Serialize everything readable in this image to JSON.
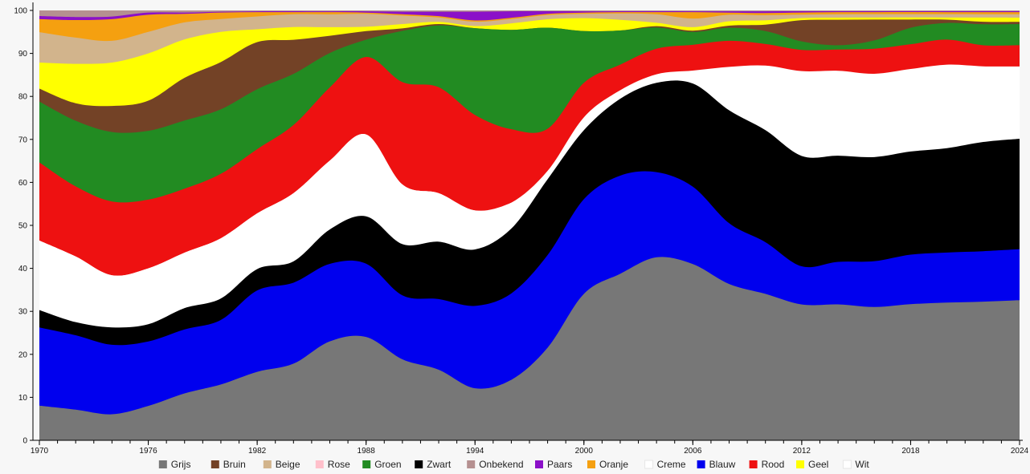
{
  "chart_data": {
    "type": "area",
    "stacked": true,
    "streamgraph_smoothing": true,
    "title": "",
    "xlabel": "",
    "ylabel": "",
    "xlim": [
      1970,
      2024
    ],
    "ylim": [
      0,
      100
    ],
    "x_ticks": [
      1970,
      1976,
      1982,
      1988,
      1994,
      2000,
      2006,
      2012,
      2018,
      2024
    ],
    "y_ticks": [
      0,
      10,
      20,
      30,
      40,
      50,
      60,
      70,
      80,
      90,
      100
    ],
    "grid": false,
    "legend_position": "bottom",
    "x": [
      1970,
      1972,
      1974,
      1976,
      1978,
      1980,
      1982,
      1984,
      1986,
      1988,
      1990,
      1992,
      1994,
      1996,
      1998,
      2000,
      2002,
      2004,
      2006,
      2008,
      2010,
      2012,
      2014,
      2016,
      2018,
      2020,
      2022,
      2024
    ],
    "series": [
      {
        "name": "Grijs",
        "color": "#777777",
        "values": [
          8,
          7,
          6,
          8,
          11,
          13,
          16,
          18,
          23,
          24,
          19,
          16,
          12,
          14,
          22,
          34,
          39,
          43,
          41,
          36,
          34,
          32,
          32,
          32,
          33,
          33,
          33,
          33
        ]
      },
      {
        "name": "Blauw",
        "color": "#0000ee",
        "values": [
          18,
          17,
          16,
          15,
          15,
          15,
          19,
          19,
          18,
          17,
          15,
          16,
          19,
          20,
          22,
          22,
          23,
          20,
          18,
          14,
          12,
          9,
          10,
          11,
          12,
          12,
          12,
          12
        ]
      },
      {
        "name": "Zwart",
        "color": "#000000",
        "values": [
          4,
          3,
          4,
          4,
          5,
          5,
          5,
          5,
          8,
          11,
          12,
          13,
          13,
          15,
          18,
          16,
          18,
          21,
          24,
          26,
          26,
          26,
          25,
          25,
          25,
          25,
          26,
          26
        ]
      },
      {
        "name": "Wit",
        "color": "#ffffff",
        "values": [
          16,
          15,
          12,
          13,
          13,
          14,
          13,
          16,
          16,
          19,
          14,
          11,
          9,
          6,
          0,
          0,
          0,
          0,
          0,
          0,
          0,
          0,
          0,
          0,
          0,
          0,
          0,
          0
        ]
      },
      {
        "name": "Creme",
        "color": "#ffffff",
        "values": [
          0,
          0,
          0,
          0,
          0,
          0,
          0,
          0,
          0,
          0,
          0,
          0,
          0,
          0,
          2,
          3,
          2,
          2,
          3,
          10,
          15,
          20,
          20,
          20,
          20,
          20,
          18,
          17
        ]
      },
      {
        "name": "Rood",
        "color": "#ee1111",
        "values": [
          18,
          16,
          17,
          16,
          15,
          15,
          15,
          16,
          17,
          18,
          24,
          24,
          22,
          17,
          10,
          8,
          6,
          6,
          6,
          6,
          5,
          5,
          5,
          6,
          6,
          6,
          5,
          5
        ]
      },
      {
        "name": "Groen",
        "color": "#228b22",
        "values": [
          14,
          15,
          16,
          16,
          16,
          15,
          14,
          12,
          8,
          4,
          12,
          14,
          20,
          23,
          24,
          12,
          8,
          5,
          3,
          3,
          3,
          2,
          1,
          2,
          4,
          4,
          5,
          5
        ]
      },
      {
        "name": "Bruin",
        "color": "#734226",
        "values": [
          3,
          4,
          6,
          7,
          10,
          11,
          11,
          8,
          4,
          2,
          0.6,
          0.3,
          0,
          0,
          0,
          0,
          0,
          0.3,
          0.3,
          0.5,
          1.5,
          5,
          6,
          5,
          2,
          0.8,
          0.6,
          0.5
        ]
      },
      {
        "name": "Geel",
        "color": "#ffff00",
        "values": [
          6,
          9,
          10,
          11,
          9,
          7,
          3,
          3,
          2,
          1,
          1,
          0.5,
          0.5,
          1.5,
          2,
          3,
          2.5,
          0.8,
          0.8,
          1,
          1,
          0.5,
          0.5,
          0.5,
          0.5,
          0.5,
          1,
          1
        ]
      },
      {
        "name": "Beige",
        "color": "#d2b48c",
        "values": [
          7,
          6,
          5,
          5,
          4,
          3,
          3,
          3,
          3,
          3,
          2,
          1,
          1,
          1,
          1,
          1,
          1.5,
          2,
          2,
          1.5,
          1.2,
          0.8,
          0.8,
          0.8,
          0.8,
          0.8,
          0.8,
          0.8
        ]
      },
      {
        "name": "Oranje",
        "color": "#f5a010",
        "values": [
          3,
          4,
          5,
          4,
          2,
          1.5,
          1,
          0.5,
          0.5,
          0.3,
          0.3,
          0.3,
          0.3,
          0.3,
          0.3,
          0.3,
          0.3,
          0.5,
          1.5,
          0.5,
          0.5,
          0.5,
          0.5,
          0.5,
          0.5,
          0.5,
          0.5,
          0.5
        ]
      },
      {
        "name": "Paars",
        "color": "#8b10c8",
        "values": [
          0.7,
          0.7,
          0.6,
          0.5,
          0.3,
          0.2,
          0.2,
          0.2,
          0.2,
          0.3,
          0.6,
          1,
          2,
          1.5,
          0.6,
          0.3,
          0.2,
          0.2,
          0.2,
          0.3,
          0.4,
          0.3,
          0.2,
          0.2,
          0.2,
          0.2,
          0.2,
          0.2
        ]
      },
      {
        "name": "Onbekend",
        "color": "#b59090",
        "values": [
          1.3,
          1.5,
          1.4,
          0.5,
          0.5,
          0.3,
          0.2,
          0.2,
          0.2,
          0.2,
          0.3,
          0.3,
          0.3,
          0.2,
          0.2,
          0.2,
          0.2,
          0.2,
          0.2,
          0.2,
          0.2,
          0.2,
          0.2,
          0.2,
          0.2,
          0.2,
          0.2,
          0.2
        ]
      },
      {
        "name": "Rose",
        "color": "#ffc0cb",
        "values": [
          0,
          0,
          0,
          0,
          0,
          0,
          0,
          0,
          0,
          0,
          0,
          0,
          0,
          0,
          0,
          0,
          0,
          0,
          0,
          0,
          0,
          0,
          0,
          0,
          0,
          0,
          0,
          0
        ]
      }
    ],
    "legend_order": [
      "Grijs",
      "Bruin",
      "Beige",
      "Rose",
      "Groen",
      "Zwart",
      "Onbekend",
      "Paars",
      "Oranje",
      "Creme",
      "Blauw",
      "Rood",
      "Geel",
      "Wit"
    ]
  }
}
